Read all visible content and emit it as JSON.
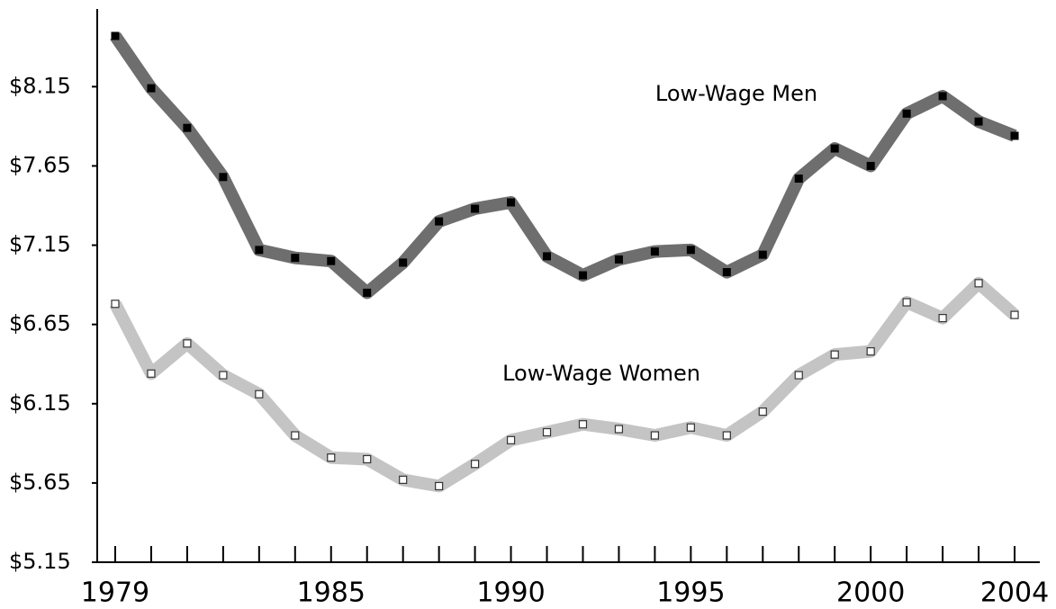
{
  "chart_data": {
    "type": "line",
    "x": [
      1979,
      1980,
      1981,
      1982,
      1983,
      1984,
      1985,
      1986,
      1987,
      1988,
      1989,
      1990,
      1991,
      1992,
      1993,
      1994,
      1995,
      1996,
      1997,
      1998,
      1999,
      2000,
      2001,
      2002,
      2003,
      2004
    ],
    "series": [
      {
        "name": "Low-Wage Men",
        "color": "#6e6e6e",
        "values": [
          8.47,
          8.14,
          7.89,
          7.58,
          7.12,
          7.07,
          7.05,
          6.85,
          7.04,
          7.3,
          7.38,
          7.42,
          7.08,
          6.96,
          7.06,
          7.11,
          7.12,
          6.98,
          7.09,
          7.57,
          7.76,
          7.65,
          7.98,
          8.09,
          7.93,
          7.84
        ]
      },
      {
        "name": "Low-Wage Women",
        "color": "#c4c4c4",
        "values": [
          6.78,
          6.34,
          6.53,
          6.33,
          6.21,
          5.95,
          5.81,
          5.8,
          5.67,
          5.63,
          5.77,
          5.92,
          5.97,
          6.02,
          5.99,
          5.95,
          6.0,
          5.95,
          6.1,
          6.33,
          6.46,
          6.48,
          6.79,
          6.69,
          6.91,
          6.71
        ]
      }
    ],
    "xlim": [
      1978.5,
      2004.7
    ],
    "xticks": [
      1979,
      1985,
      1990,
      1995,
      2000,
      2004
    ],
    "ylim": [
      5.15,
      8.64
    ],
    "yticks": [
      {
        "value": 5.15,
        "label": "$5.15"
      },
      {
        "value": 5.65,
        "label": "$5.65"
      },
      {
        "value": 6.15,
        "label": "$6.15"
      },
      {
        "value": 6.65,
        "label": "$6.65"
      },
      {
        "value": 7.15,
        "label": "$7.15"
      },
      {
        "value": 7.65,
        "label": "$7.65"
      },
      {
        "value": 8.15,
        "label": "$8.15"
      }
    ],
    "grid": false
  }
}
